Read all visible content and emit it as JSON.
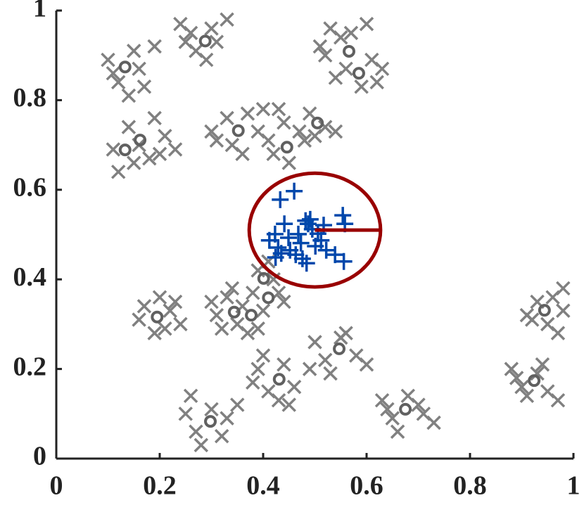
{
  "chart_data": {
    "type": "scatter",
    "xlim": [
      0,
      1
    ],
    "ylim": [
      0,
      1
    ],
    "xticks": [
      0,
      0.2,
      0.4,
      0.6,
      0.8,
      1
    ],
    "yticks": [
      0,
      0.2,
      0.4,
      0.6,
      0.8,
      1
    ],
    "series": [
      {
        "marker": "x",
        "color": "#808080",
        "x": [
          0.1,
          0.15,
          0.12,
          0.17,
          0.11,
          0.16,
          0.19,
          0.14,
          0.24,
          0.26,
          0.3,
          0.33,
          0.27,
          0.31,
          0.29,
          0.25,
          0.53,
          0.55,
          0.6,
          0.52,
          0.56,
          0.61,
          0.63,
          0.59,
          0.54,
          0.62,
          0.57,
          0.51,
          0.11,
          0.14,
          0.19,
          0.21,
          0.23,
          0.15,
          0.18,
          0.12,
          0.16,
          0.2,
          0.31,
          0.33,
          0.37,
          0.39,
          0.34,
          0.36,
          0.4,
          0.3,
          0.44,
          0.47,
          0.49,
          0.52,
          0.54,
          0.42,
          0.45,
          0.48,
          0.5,
          0.43,
          0.41,
          0.3,
          0.31,
          0.33,
          0.35,
          0.36,
          0.38,
          0.39,
          0.42,
          0.43,
          0.4,
          0.37,
          0.32,
          0.41,
          0.44,
          0.34,
          0.39,
          0.17,
          0.2,
          0.22,
          0.24,
          0.19,
          0.16,
          0.23,
          0.21,
          0.5,
          0.52,
          0.55,
          0.58,
          0.6,
          0.53,
          0.56,
          0.49,
          0.39,
          0.41,
          0.44,
          0.46,
          0.43,
          0.38,
          0.45,
          0.4,
          0.25,
          0.27,
          0.3,
          0.33,
          0.32,
          0.28,
          0.26,
          0.35,
          0.63,
          0.65,
          0.68,
          0.71,
          0.73,
          0.66,
          0.7,
          0.64,
          0.91,
          0.93,
          0.96,
          0.98,
          0.95,
          0.97,
          0.92,
          0.98,
          0.88,
          0.9,
          0.93,
          0.95,
          0.91,
          0.97,
          0.89,
          0.94
        ],
        "values": [
          0.89,
          0.91,
          0.84,
          0.83,
          0.86,
          0.87,
          0.92,
          0.81,
          0.97,
          0.95,
          0.96,
          0.98,
          0.91,
          0.93,
          0.89,
          0.93,
          0.96,
          0.94,
          0.97,
          0.9,
          0.87,
          0.89,
          0.87,
          0.83,
          0.85,
          0.84,
          0.95,
          0.92,
          0.69,
          0.74,
          0.76,
          0.72,
          0.69,
          0.66,
          0.67,
          0.64,
          0.7,
          0.68,
          0.71,
          0.76,
          0.77,
          0.73,
          0.7,
          0.68,
          0.78,
          0.73,
          0.75,
          0.73,
          0.77,
          0.74,
          0.73,
          0.68,
          0.66,
          0.71,
          0.72,
          0.78,
          0.71,
          0.35,
          0.32,
          0.36,
          0.3,
          0.34,
          0.37,
          0.42,
          0.4,
          0.37,
          0.33,
          0.28,
          0.29,
          0.44,
          0.35,
          0.38,
          0.29,
          0.34,
          0.36,
          0.33,
          0.3,
          0.28,
          0.31,
          0.35,
          0.29,
          0.26,
          0.22,
          0.27,
          0.23,
          0.21,
          0.19,
          0.28,
          0.2,
          0.2,
          0.15,
          0.21,
          0.16,
          0.13,
          0.17,
          0.12,
          0.23,
          0.1,
          0.06,
          0.11,
          0.09,
          0.05,
          0.03,
          0.14,
          0.12,
          0.13,
          0.09,
          0.14,
          0.1,
          0.08,
          0.06,
          0.12,
          0.11,
          0.32,
          0.35,
          0.36,
          0.33,
          0.3,
          0.28,
          0.31,
          0.38,
          0.2,
          0.16,
          0.19,
          0.15,
          0.14,
          0.13,
          0.18,
          0.21
        ]
      },
      {
        "marker": "+",
        "color": "#0047ab",
        "x": [
          0.433,
          0.46,
          0.441,
          0.423,
          0.412,
          0.429,
          0.435,
          0.452,
          0.463,
          0.476,
          0.484,
          0.487,
          0.491,
          0.495,
          0.506,
          0.512,
          0.522,
          0.539,
          0.556,
          0.554,
          0.558,
          0.473,
          0.501,
          0.468,
          0.449,
          0.424,
          0.482,
          0.517
        ],
        "values": [
          0.578,
          0.597,
          0.524,
          0.501,
          0.487,
          0.471,
          0.458,
          0.465,
          0.455,
          0.446,
          0.436,
          0.524,
          0.534,
          0.512,
          0.502,
          0.487,
          0.465,
          0.455,
          0.44,
          0.543,
          0.524,
          0.481,
          0.474,
          0.501,
          0.493,
          0.449,
          0.531,
          0.521
        ]
      },
      {
        "marker": "o",
        "color": "#606060",
        "x": [
          0.133,
          0.288,
          0.566,
          0.585,
          0.162,
          0.133,
          0.352,
          0.505,
          0.446,
          0.401,
          0.41,
          0.344,
          0.377,
          0.195,
          0.547,
          0.431,
          0.298,
          0.675,
          0.944,
          0.924
        ],
        "values": [
          0.874,
          0.932,
          0.909,
          0.86,
          0.711,
          0.689,
          0.732,
          0.749,
          0.695,
          0.402,
          0.359,
          0.327,
          0.32,
          0.316,
          0.245,
          0.177,
          0.083,
          0.11,
          0.331,
          0.174
        ]
      }
    ],
    "circle": {
      "x": 0.5,
      "y": 0.51,
      "r": 0.127,
      "color": "#990000"
    }
  }
}
